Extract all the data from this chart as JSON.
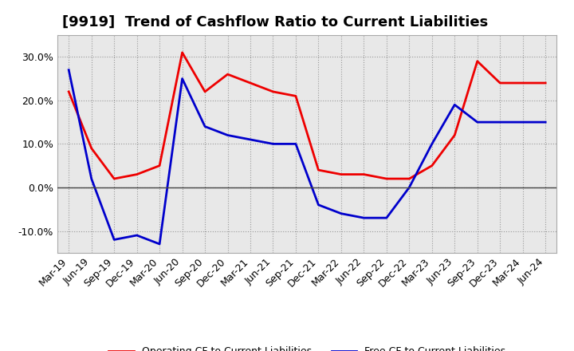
{
  "title": "[9919]  Trend of Cashflow Ratio to Current Liabilities",
  "x_labels": [
    "Mar-19",
    "Jun-19",
    "Sep-19",
    "Dec-19",
    "Mar-20",
    "Jun-20",
    "Sep-20",
    "Dec-20",
    "Mar-21",
    "Jun-21",
    "Sep-21",
    "Dec-21",
    "Mar-22",
    "Jun-22",
    "Sep-22",
    "Dec-22",
    "Mar-23",
    "Jun-23",
    "Sep-23",
    "Dec-23",
    "Mar-24",
    "Jun-24"
  ],
  "operating_cf": [
    0.22,
    0.09,
    0.02,
    0.03,
    0.05,
    0.31,
    0.22,
    0.26,
    0.24,
    0.22,
    0.21,
    0.04,
    0.03,
    0.03,
    0.02,
    0.02,
    0.05,
    0.12,
    0.29,
    0.24,
    0.24,
    0.24
  ],
  "free_cf": [
    0.27,
    0.02,
    -0.12,
    -0.11,
    -0.13,
    0.25,
    0.14,
    0.12,
    0.11,
    0.1,
    0.1,
    -0.04,
    -0.06,
    -0.07,
    -0.07,
    0.0,
    0.1,
    0.19,
    0.15,
    0.15,
    0.15,
    0.15
  ],
  "operating_color": "#EE0000",
  "free_color": "#0000CC",
  "ylim": [
    -0.15,
    0.35
  ],
  "yticks": [
    -0.1,
    0.0,
    0.1,
    0.2,
    0.3
  ],
  "background_color": "#FFFFFF",
  "plot_bg_color": "#E8E8E8",
  "grid_color": "#999999",
  "legend_op": "Operating CF to Current Liabilities",
  "legend_free": "Free CF to Current Liabilities",
  "title_fontsize": 13,
  "tick_fontsize": 9,
  "legend_fontsize": 9
}
